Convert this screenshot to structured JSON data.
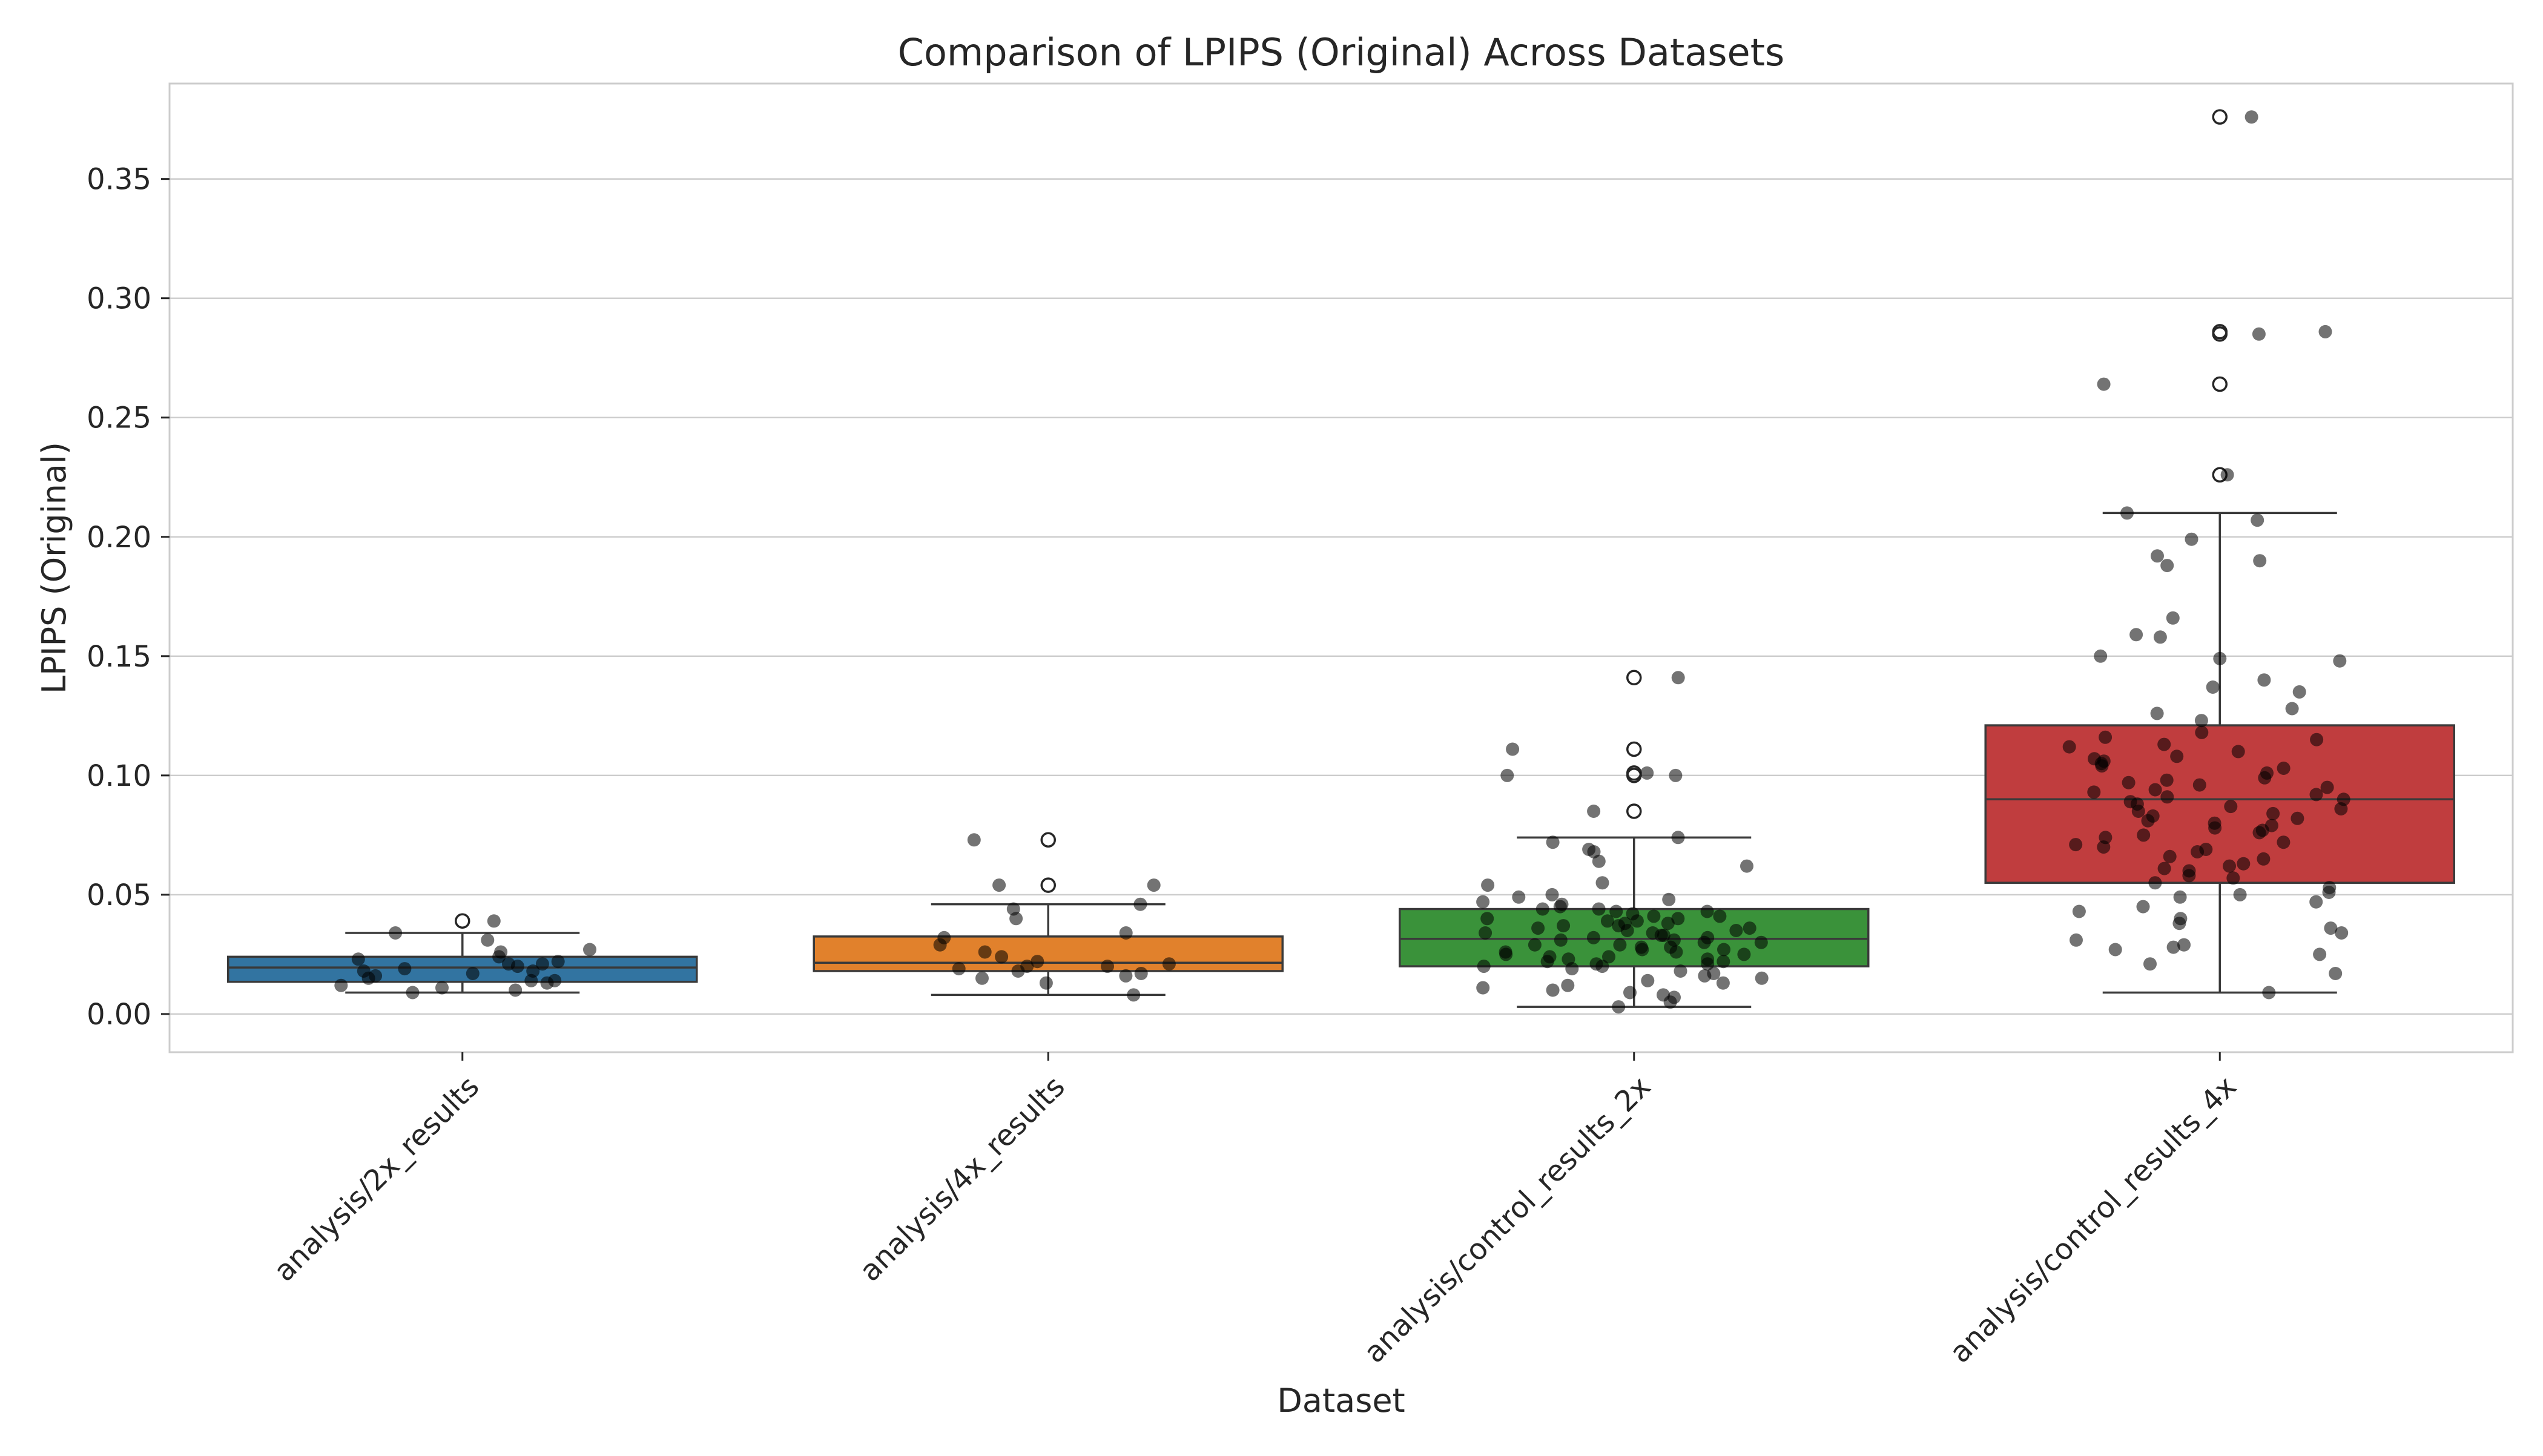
{
  "chart_data": {
    "type": "box",
    "title": "Comparison of LPIPS (Original) Across Datasets",
    "xlabel": "Dataset",
    "ylabel": "LPIPS (Original)",
    "ylim": [
      -0.016,
      0.39
    ],
    "yticks": [
      0.0,
      0.05,
      0.1,
      0.15,
      0.2,
      0.25,
      0.3,
      0.35
    ],
    "ytick_labels": [
      "0.00",
      "0.05",
      "0.10",
      "0.15",
      "0.20",
      "0.25",
      "0.30",
      "0.35"
    ],
    "grid": true,
    "categories": [
      "analysis/2x_results",
      "analysis/4x_results",
      "analysis/control_results_2x",
      "analysis/control_results_4x"
    ],
    "colors": [
      "#3274a1",
      "#e1812c",
      "#3a923a",
      "#c03d3e"
    ],
    "boxes": [
      {
        "q1": 0.0135,
        "median": 0.0195,
        "q3": 0.024,
        "whisker_low": 0.009,
        "whisker_high": 0.034,
        "outliers": [
          0.039
        ]
      },
      {
        "q1": 0.018,
        "median": 0.0215,
        "q3": 0.0325,
        "whisker_low": 0.008,
        "whisker_high": 0.046,
        "outliers": [
          0.054,
          0.073
        ]
      },
      {
        "q1": 0.02,
        "median": 0.0315,
        "q3": 0.044,
        "whisker_low": 0.003,
        "whisker_high": 0.074,
        "outliers": [
          0.085,
          0.1,
          0.101,
          0.111,
          0.141
        ]
      },
      {
        "q1": 0.055,
        "median": 0.09,
        "q3": 0.121,
        "whisker_low": 0.009,
        "whisker_high": 0.21,
        "outliers": [
          0.226,
          0.264,
          0.285,
          0.286,
          0.376
        ]
      }
    ],
    "points": [
      [
        0.039,
        0.034,
        0.031,
        0.027,
        0.026,
        0.024,
        0.023,
        0.022,
        0.021,
        0.021,
        0.02,
        0.019,
        0.018,
        0.018,
        0.017,
        0.016,
        0.015,
        0.014,
        0.014,
        0.013,
        0.012,
        0.011,
        0.01,
        0.009
      ],
      [
        0.073,
        0.054,
        0.054,
        0.046,
        0.044,
        0.04,
        0.034,
        0.032,
        0.029,
        0.026,
        0.024,
        0.022,
        0.021,
        0.02,
        0.02,
        0.019,
        0.018,
        0.017,
        0.016,
        0.015,
        0.013,
        0.008
      ],
      [
        0.141,
        0.111,
        0.101,
        0.1,
        0.1,
        0.085,
        0.074,
        0.072,
        0.069,
        0.068,
        0.064,
        0.062,
        0.055,
        0.054,
        0.05,
        0.049,
        0.048,
        0.047,
        0.046,
        0.045,
        0.044,
        0.044,
        0.043,
        0.043,
        0.042,
        0.041,
        0.041,
        0.04,
        0.04,
        0.039,
        0.039,
        0.038,
        0.038,
        0.037,
        0.037,
        0.036,
        0.036,
        0.035,
        0.035,
        0.034,
        0.034,
        0.033,
        0.033,
        0.032,
        0.032,
        0.031,
        0.031,
        0.03,
        0.03,
        0.029,
        0.029,
        0.028,
        0.028,
        0.027,
        0.027,
        0.026,
        0.026,
        0.025,
        0.025,
        0.024,
        0.024,
        0.023,
        0.023,
        0.022,
        0.022,
        0.021,
        0.021,
        0.02,
        0.02,
        0.019,
        0.018,
        0.017,
        0.016,
        0.015,
        0.014,
        0.013,
        0.012,
        0.011,
        0.01,
        0.009,
        0.008,
        0.007,
        0.005,
        0.003
      ],
      [
        0.376,
        0.286,
        0.285,
        0.264,
        0.226,
        0.21,
        0.207,
        0.199,
        0.192,
        0.19,
        0.188,
        0.166,
        0.159,
        0.158,
        0.15,
        0.149,
        0.148,
        0.14,
        0.137,
        0.135,
        0.128,
        0.126,
        0.123,
        0.118,
        0.116,
        0.115,
        0.113,
        0.112,
        0.11,
        0.108,
        0.107,
        0.106,
        0.105,
        0.104,
        0.103,
        0.101,
        0.099,
        0.098,
        0.097,
        0.096,
        0.095,
        0.094,
        0.093,
        0.092,
        0.091,
        0.09,
        0.089,
        0.088,
        0.087,
        0.086,
        0.085,
        0.084,
        0.083,
        0.082,
        0.081,
        0.08,
        0.079,
        0.078,
        0.077,
        0.076,
        0.075,
        0.074,
        0.072,
        0.071,
        0.07,
        0.069,
        0.068,
        0.066,
        0.065,
        0.063,
        0.062,
        0.061,
        0.06,
        0.058,
        0.057,
        0.055,
        0.053,
        0.051,
        0.05,
        0.049,
        0.047,
        0.045,
        0.043,
        0.04,
        0.038,
        0.036,
        0.034,
        0.031,
        0.029,
        0.028,
        0.027,
        0.025,
        0.021,
        0.017,
        0.009
      ]
    ]
  }
}
